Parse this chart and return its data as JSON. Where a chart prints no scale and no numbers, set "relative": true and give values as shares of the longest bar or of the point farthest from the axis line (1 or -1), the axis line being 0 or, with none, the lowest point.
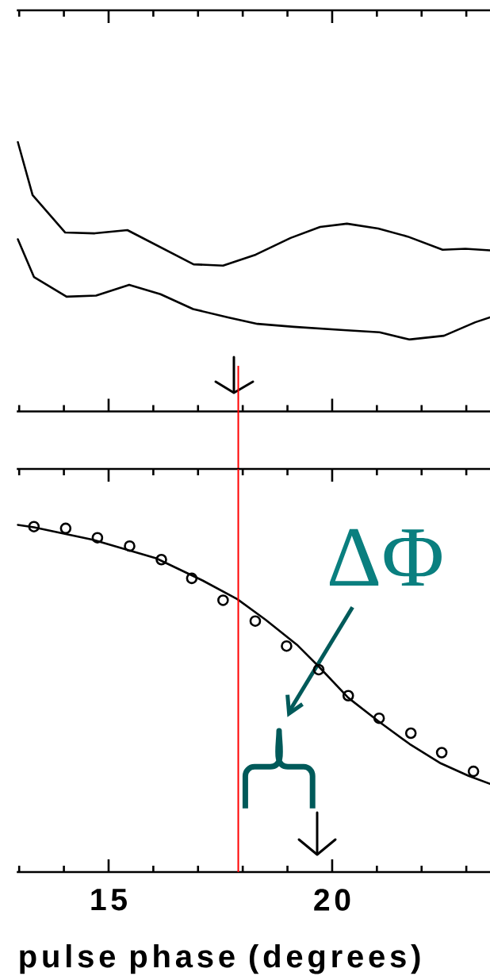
{
  "chart_data": [
    {
      "type": "line",
      "relative": true,
      "tick_labels": false,
      "xlim": [
        12.97,
        23.53
      ],
      "xticks": [
        {
          "value": 13,
          "label": null
        },
        {
          "value": 14,
          "label": null
        },
        15,
        {
          "value": 16,
          "label": null
        },
        {
          "value": 17,
          "label": null
        },
        {
          "value": 18,
          "label": null
        },
        {
          "value": 19,
          "label": null
        },
        20,
        {
          "value": 21,
          "label": null
        },
        {
          "value": 22,
          "label": null
        },
        {
          "value": 23,
          "label": null
        }
      ],
      "series": [
        {
          "color": "#000000",
          "x": [
            12.97,
            13.3,
            14.03,
            14.69,
            15.42,
            16.9,
            17.56,
            18.29,
            19.07,
            19.73,
            20.33,
            21.03,
            21.69,
            22.47,
            22.98,
            23.53
          ],
          "values": [
            1.0,
            0.803,
            0.664,
            0.661,
            0.673,
            0.546,
            0.541,
            0.582,
            0.644,
            0.685,
            0.697,
            0.679,
            0.649,
            0.6,
            0.604,
            0.598
          ]
        },
        {
          "color": "#000000",
          "x": [
            12.97,
            13.33,
            14.06,
            14.72,
            15.46,
            16.16,
            16.89,
            17.67,
            18.33,
            19.14,
            20.26,
            21.06,
            21.72,
            22.5,
            23.2,
            23.53
          ],
          "values": [
            0.639,
            0.499,
            0.426,
            0.43,
            0.47,
            0.435,
            0.38,
            0.349,
            0.325,
            0.314,
            0.302,
            0.294,
            0.267,
            0.281,
            0.331,
            0.349
          ]
        }
      ],
      "ref_lines": [
        {
          "axis": "x",
          "value": 17.9,
          "color": "#ff0000"
        }
      ]
    },
    {
      "type": "scatter",
      "relative": true,
      "tick_labels": "x",
      "xlabel": "pulse phase (degrees)",
      "xlim": [
        12.97,
        23.53
      ],
      "xticks": [
        {
          "value": 13,
          "label": null
        },
        {
          "value": 14,
          "label": null
        },
        15,
        {
          "value": 16,
          "label": null
        },
        {
          "value": 17,
          "label": null
        },
        {
          "value": 18,
          "label": null
        },
        {
          "value": 19,
          "label": null
        },
        20,
        {
          "value": 21,
          "label": null
        },
        {
          "value": 22,
          "label": null
        },
        {
          "value": 23,
          "label": null
        }
      ],
      "series": [
        {
          "type": "line",
          "color": "#000000",
          "x": [
            12.97,
            13.33,
            14.65,
            16.06,
            17.1,
            17.88,
            18.51,
            19.21,
            19.7,
            20.36,
            21.03,
            21.73,
            22.43,
            23.05,
            23.53
          ],
          "values": [
            1.0,
            0.993,
            0.957,
            0.904,
            0.84,
            0.786,
            0.727,
            0.655,
            0.592,
            0.502,
            0.435,
            0.369,
            0.313,
            0.277,
            0.254
          ]
        },
        {
          "type": "scatter",
          "marker": "circle",
          "color": "#000000",
          "x": [
            13.33,
            14.04,
            14.75,
            15.47,
            16.18,
            16.86,
            17.56,
            18.28,
            18.98,
            19.7,
            20.36,
            21.05,
            21.76,
            22.45,
            23.16
          ],
          "values": [
            0.995,
            0.99,
            0.963,
            0.939,
            0.9,
            0.846,
            0.783,
            0.723,
            0.651,
            0.583,
            0.508,
            0.443,
            0.4,
            0.344,
            0.29
          ]
        }
      ],
      "ref_lines": [
        {
          "axis": "x",
          "value": 17.9,
          "color": "#ff0000"
        }
      ],
      "annotations": [
        "ΔΦ"
      ]
    }
  ]
}
